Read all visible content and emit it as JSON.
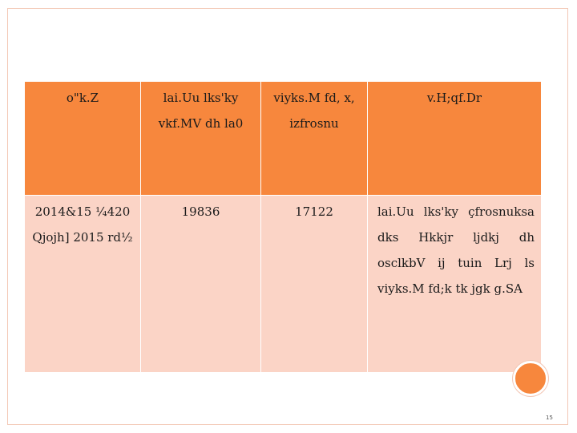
{
  "table": {
    "headers": [
      "o\"k.Z",
      "lai.Uu lks'ky vkf.MV dh la0",
      "viyks.M fd, x, izfrosnu",
      "v.H;qf.Dr"
    ],
    "rows": [
      [
        "2014&15 ¼420 Qjojh] 2015 rd½",
        "19836",
        "17122",
        "lai.Uu lks'ky çfrosnuksa dks Hkkjr ljdkj dh osclkbV ij tuin Lrj ls viyks.M fd;k tk jgk g.SA"
      ]
    ]
  },
  "footer": {
    "page_number": "15"
  },
  "colors": {
    "header_bg": "#f7873d",
    "cell_bg": "#fbd4c6",
    "frame_border": "#f3c8b6"
  }
}
